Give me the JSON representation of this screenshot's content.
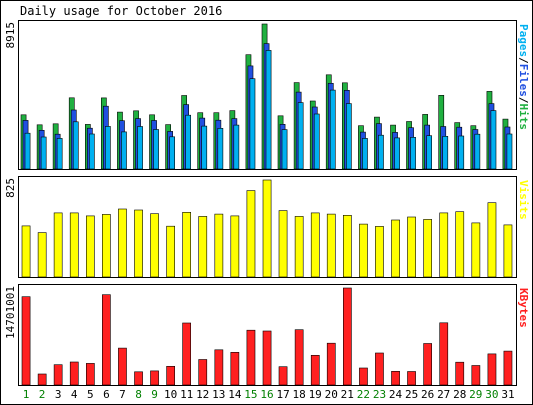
{
  "chart_data": {
    "type": "bar",
    "title": "Daily usage for October 2016",
    "categories": [
      "1",
      "2",
      "3",
      "4",
      "5",
      "6",
      "7",
      "8",
      "9",
      "10",
      "11",
      "12",
      "13",
      "14",
      "15",
      "16",
      "17",
      "18",
      "19",
      "20",
      "21",
      "22",
      "23",
      "24",
      "25",
      "26",
      "27",
      "28",
      "29",
      "30",
      "31"
    ],
    "weekend_days": [
      "1",
      "2",
      "8",
      "9",
      "15",
      "16",
      "22",
      "23",
      "29",
      "30"
    ],
    "panels": [
      {
        "id": "pages-files-hits",
        "max_label": "8915",
        "ymax": 8915,
        "legend": [
          "Pages",
          "Files",
          "Hits"
        ],
        "series": [
          {
            "name": "Hits",
            "color": "#20b040",
            "values": [
              3330,
              2720,
              2780,
              4380,
              2740,
              4370,
              3500,
              3580,
              3330,
              2730,
              4520,
              3460,
              3460,
              3590,
              7030,
              8915,
              3270,
              5310,
              4180,
              5790,
              5300,
              2660,
              3190,
              2700,
              2920,
              3360,
              4530,
              2850,
              2660,
              4770,
              3070
            ]
          },
          {
            "name": "Files",
            "color": "#2050e0",
            "values": [
              2990,
              2380,
              2140,
              3630,
              2510,
              3860,
              2970,
              3100,
              2980,
              2310,
              3960,
              3130,
              3000,
              3100,
              6340,
              7710,
              2750,
              4730,
              3810,
              5270,
              4840,
              2270,
              2790,
              2250,
              2540,
              2700,
              2610,
              2570,
              2430,
              4020,
              2580
            ]
          },
          {
            "name": "Pages",
            "color": "#00b0f0",
            "values": [
              2200,
              1970,
              1880,
              2900,
              2150,
              2620,
              2280,
              2610,
              2430,
              1980,
              3310,
              2640,
              2500,
              2700,
              5550,
              7290,
              2420,
              4080,
              3380,
              4850,
              4020,
              1880,
              2080,
              1910,
              1950,
              2050,
              2010,
              2030,
              2140,
              3590,
              2150
            ]
          }
        ]
      },
      {
        "id": "visits",
        "max_label": "825",
        "ymax": 825,
        "legend": [
          "Visits"
        ],
        "series": [
          {
            "name": "Visits",
            "color": "#ffff00",
            "values": [
              435,
              378,
              545,
              545,
              520,
              532,
              578,
              570,
              538,
              432,
              550,
              515,
              535,
              520,
              735,
              825,
              565,
              515,
              545,
              535,
              525,
              450,
              430,
              485,
              510,
              490,
              545,
              555,
              460,
              632,
              443
            ]
          }
        ]
      },
      {
        "id": "kbytes",
        "max_label": "14701001",
        "ymax": 14701001,
        "legend": [
          "KBytes"
        ],
        "series": [
          {
            "name": "KBytes",
            "color": "#ff2020",
            "values": [
              13390000,
              1660000,
              3070000,
              3490000,
              3270000,
              13690000,
              5600000,
              2000000,
              2130000,
              2840000,
              9400000,
              3860000,
              5340000,
              4960000,
              8310000,
              8190000,
              2770000,
              8380000,
              4500000,
              6330000,
              14701001,
              2580000,
              4850000,
              2080000,
              2040000,
              6290000,
              9430000,
              3450000,
              2960000,
              4710000,
              5140000
            ]
          }
        ]
      }
    ]
  },
  "colors": {
    "background": "#ffffff",
    "frame": "#000000",
    "plot_background": "#ffffff",
    "weekday_label": "#000000",
    "weekend_label": "#008000"
  }
}
